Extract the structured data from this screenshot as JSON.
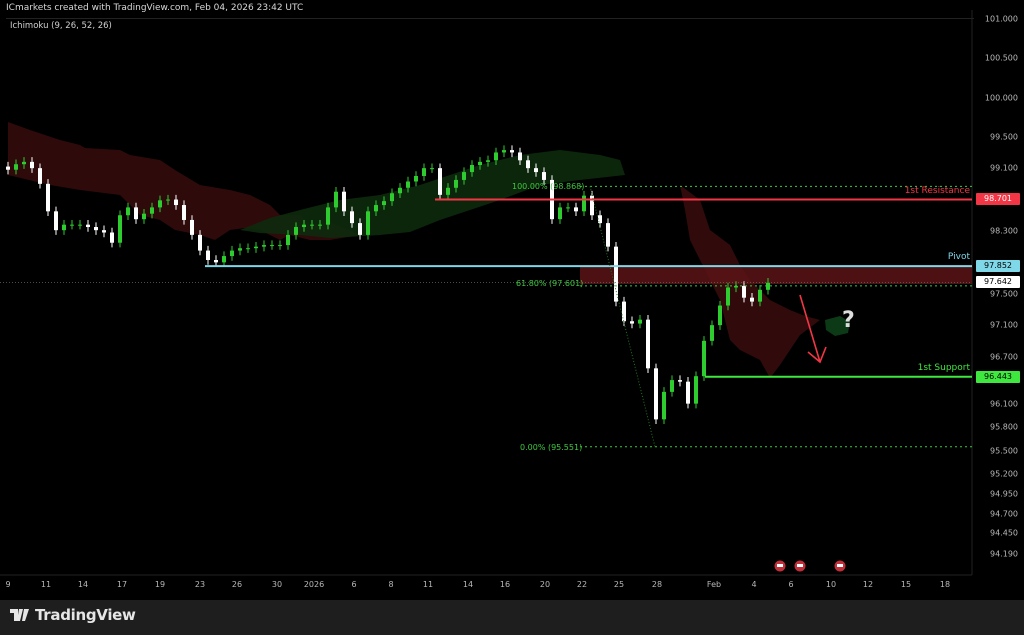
{
  "header": {
    "text": "ICmarkets created with TradingView.com, Feb 04, 2026 23:42 UTC"
  },
  "indicator": {
    "label": "Ichimoku (9, 26, 52, 26)"
  },
  "price_axis": [
    "101.000",
    "100.500",
    "100.000",
    "99.500",
    "99.100",
    "98.300",
    "97.500",
    "97.100",
    "96.700",
    "96.100",
    "95.800",
    "95.500",
    "95.200",
    "94.950",
    "94.700",
    "94.450",
    "94.190"
  ],
  "time_axis": [
    "9",
    "11",
    "14",
    "17",
    "19",
    "23",
    "26",
    "30",
    "2026",
    "6",
    "8",
    "11",
    "14",
    "16",
    "20",
    "22",
    "25",
    "28",
    "Feb",
    "4",
    "6",
    "10",
    "12",
    "15",
    "18"
  ],
  "levels": {
    "resistance": {
      "label": "1st Resistance",
      "value": "98.701",
      "color": "#f23645"
    },
    "pivot": {
      "label": "Pivot",
      "value": "97.852",
      "color": "#7fd8e8"
    },
    "support": {
      "label": "1st Support",
      "value": "96.443",
      "color": "#3ee83e"
    },
    "last_price": {
      "value": "97.642"
    }
  },
  "fib": {
    "f100": "100.00% (98.868)",
    "f618": "61.80% (97.601)",
    "f0": "0.00% (95.551)",
    "color": "#3ec93e"
  },
  "annotation": {
    "question": "?",
    "arrow_color": "#f23645"
  },
  "chart_data": {
    "type": "candlestick",
    "ylim": [
      94.19,
      101.0
    ],
    "up_color": "#2ecc2e",
    "down_color": "#ffffff",
    "closes": [
      99.08,
      99.15,
      99.18,
      99.1,
      98.9,
      98.55,
      98.31,
      98.38,
      98.38,
      98.38,
      98.35,
      98.31,
      98.28,
      98.15,
      98.5,
      98.6,
      98.45,
      98.52,
      98.6,
      98.69,
      98.7,
      98.63,
      98.44,
      98.25,
      98.05,
      97.93,
      97.9,
      97.98,
      98.05,
      98.08,
      98.08,
      98.1,
      98.12,
      98.12,
      98.12,
      98.25,
      98.35,
      98.38,
      98.38,
      98.38,
      98.6,
      98.8,
      98.55,
      98.4,
      98.25,
      98.55,
      98.63,
      98.68,
      98.78,
      98.85,
      98.93,
      99.0,
      99.1,
      99.1,
      98.76,
      98.85,
      98.95,
      99.05,
      99.14,
      99.18,
      99.2,
      99.3,
      99.33,
      99.3,
      99.2,
      99.1,
      99.05,
      98.95,
      98.45,
      98.6,
      98.6,
      98.55,
      98.75,
      98.5,
      98.4,
      98.1,
      97.4,
      97.15,
      97.12,
      97.17,
      96.55,
      95.9,
      96.25,
      96.4,
      96.38,
      96.1,
      96.45,
      96.9,
      97.1,
      97.35,
      97.58,
      97.6,
      97.45,
      97.4,
      97.55,
      97.64
    ]
  },
  "footer": {
    "brand": "TradingView"
  }
}
